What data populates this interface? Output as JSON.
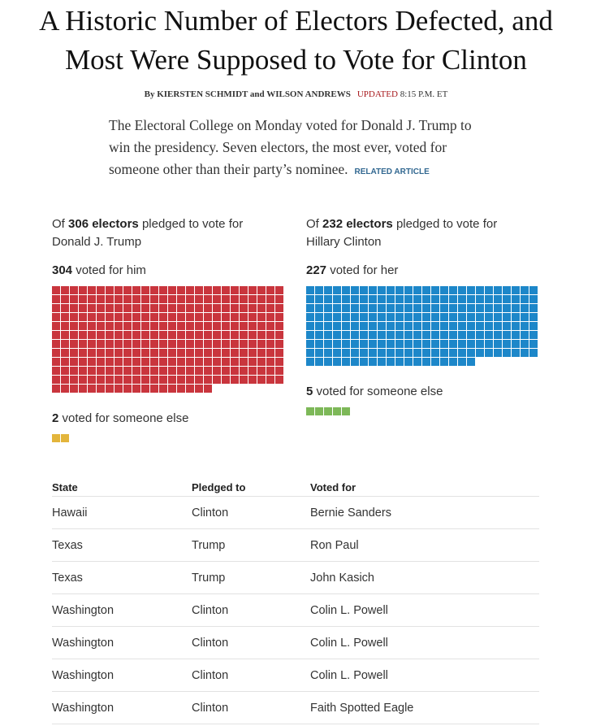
{
  "header": {
    "title_line1": "A Historic Number of Electors Defected, and",
    "title_line2": "Most Were Supposed to Vote for Clinton",
    "byline": "By KIERSTEN SCHMIDT and WILSON ANDREWS",
    "updated": "UPDATED",
    "time": "8:15 P.M. ET",
    "lede": "The Electoral College on Monday voted for Donald J. Trump to win the presidency. Seven electors, the most ever, voted for someone other than their party’s nominee.",
    "related": "RELATED ARTICLE"
  },
  "waffles": [
    {
      "prefix": "Of",
      "pledged": 306,
      "pledged_unit": "electors",
      "pledged_text": "pledged to vote for",
      "candidate": "Donald J. Trump",
      "voted": 304,
      "voted_text": "voted for him",
      "voted_color": "#c9353d",
      "other": 2,
      "other_text": "voted for someone else",
      "other_color": "#e3b53b"
    },
    {
      "prefix": "Of",
      "pledged": 232,
      "pledged_unit": "electors",
      "pledged_text": "pledged to vote for",
      "candidate": "Hillary Clinton",
      "voted": 227,
      "voted_text": "voted for her",
      "voted_color": "#1d87c9",
      "other": 5,
      "other_text": "voted for someone else",
      "other_color": "#7db858"
    }
  ],
  "table": {
    "columns": [
      "State",
      "Pledged to",
      "Voted for"
    ],
    "rows": [
      [
        "Hawaii",
        "Clinton",
        "Bernie Sanders"
      ],
      [
        "Texas",
        "Trump",
        "Ron Paul"
      ],
      [
        "Texas",
        "Trump",
        "John Kasich"
      ],
      [
        "Washington",
        "Clinton",
        "Colin L. Powell"
      ],
      [
        "Washington",
        "Clinton",
        "Colin L. Powell"
      ],
      [
        "Washington",
        "Clinton",
        "Colin L. Powell"
      ],
      [
        "Washington",
        "Clinton",
        "Faith Spotted Eagle"
      ]
    ]
  }
}
